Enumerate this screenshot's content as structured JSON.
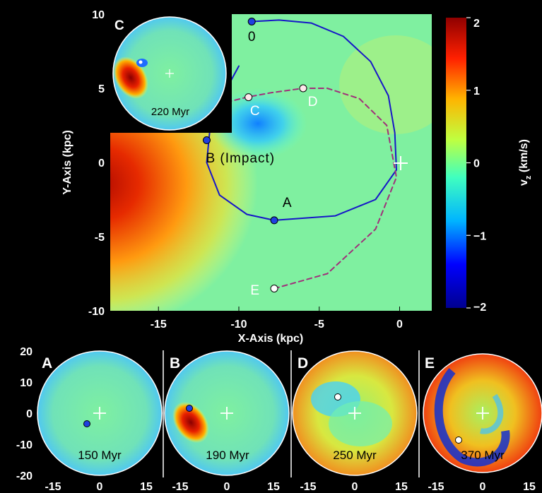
{
  "chart_data": [
    {
      "type": "heatmap",
      "title": "",
      "xlabel": "X-Axis (kpc)",
      "ylabel": "Y-Axis (kpc)",
      "xlim": [
        -18,
        2
      ],
      "ylim": [
        -10,
        10
      ],
      "x_ticks": [
        "-15",
        "-10",
        "-5",
        "0"
      ],
      "x_tick_values": [
        -15,
        -10,
        -5,
        0
      ],
      "y_ticks": [
        "10",
        "5",
        "0",
        "-5",
        "-10"
      ],
      "y_tick_values": [
        10,
        5,
        0,
        -5,
        -10
      ],
      "colorbar": {
        "label": "v",
        "label_sub": "z",
        "label_unit": " (km/s)",
        "range": [
          -2,
          2
        ],
        "ticks": [
          "2",
          "1",
          "0",
          "−1",
          "−2"
        ],
        "tick_values": [
          2,
          1,
          0,
          -1,
          -2
        ],
        "colors": [
          "#00008f",
          "#0000ff",
          "#00b4ff",
          "#40ffbf",
          "#bfff40",
          "#ffb400",
          "#ff2000",
          "#8f0000"
        ]
      },
      "galactic_center": [
        0,
        0
      ],
      "series": [
        {
          "name": "",
          "style": "solid",
          "color": "#1616c8",
          "x": [
            -7.8,
            -4.0,
            -1.5,
            -0.2,
            -0.3,
            -0.7,
            -1.8,
            -3.5,
            -5.5,
            -7.5,
            -9.2
          ],
          "y": [
            -3.9,
            -3.6,
            -2.5,
            -0.5,
            2.0,
            4.5,
            6.8,
            8.5,
            9.4,
            9.6,
            9.5
          ]
        },
        {
          "name": "",
          "style": "dashed",
          "color": "#a0307a",
          "x": [
            -7.8,
            -4.5,
            -1.5,
            -0.2,
            -0.8,
            -2.5,
            -4.5,
            -6.0,
            -8.0,
            -9.5,
            -11.0
          ],
          "y": [
            -8.5,
            -7.5,
            -4.5,
            -1.0,
            2.5,
            4.3,
            5.0,
            5.0,
            4.7,
            4.4,
            4.0
          ]
        },
        {
          "name": "",
          "style": "solid",
          "color": "#1616c8",
          "x": [
            -7.8,
            -9.5,
            -11.2,
            -12.0,
            -11.8,
            -11.2,
            -10.5,
            -10.0
          ],
          "y": [
            -3.9,
            -3.5,
            -2.2,
            0.0,
            2.2,
            4.0,
            5.5,
            6.5
          ]
        }
      ],
      "markers": [
        {
          "label": "0",
          "x": -9.2,
          "y": 9.5,
          "fill": "#1f3fe0",
          "text_color": "#000000",
          "label_dx": 0.0,
          "label_dy": -1.3
        },
        {
          "label": "A",
          "x": -7.8,
          "y": -3.9,
          "fill": "#1f3fe0",
          "text_color": "#000000",
          "label_dx": 0.8,
          "label_dy": 0.9
        },
        {
          "label": "B (Impact)",
          "x": -12.0,
          "y": 1.5,
          "fill": "#1f3fe0",
          "text_color": "#000000",
          "label_dx": 2.1,
          "label_dy": -1.5
        },
        {
          "label": "C",
          "x": -9.4,
          "y": 4.4,
          "fill": "#ffe8ec",
          "text_color": "#ffffff",
          "label_dx": 0.4,
          "label_dy": -1.2
        },
        {
          "label": "D",
          "x": -6.0,
          "y": 5.0,
          "fill": "#ffe8ec",
          "text_color": "#ffffff",
          "label_dx": 0.6,
          "label_dy": -1.2
        },
        {
          "label": "E",
          "x": -7.8,
          "y": -8.5,
          "fill": "#ffffff",
          "text_color": "#ffffff",
          "label_dx": -1.2,
          "label_dy": -0.4
        }
      ]
    },
    {
      "type": "heatmap",
      "panel": "C",
      "title": "220 Myr",
      "marker": {
        "x": -7,
        "y": 3.8
      }
    },
    {
      "type": "heatmap",
      "panel": "A",
      "title": "150 Myr",
      "xlim": [
        -20,
        20
      ],
      "ylim": [
        -20,
        20
      ],
      "x_ticks": [
        "-15",
        "0",
        "15"
      ],
      "x_tick_values": [
        -15,
        0,
        15
      ],
      "y_ticks": [
        "20",
        "10",
        "0",
        "-10",
        "-20"
      ],
      "y_tick_values": [
        20,
        10,
        0,
        -10,
        -20
      ],
      "marker": {
        "x": -4,
        "y": -3.5,
        "fill": "#1f3fe0"
      }
    },
    {
      "type": "heatmap",
      "panel": "B",
      "title": "190 Myr",
      "x_ticks": [
        "-15",
        "0",
        "15"
      ],
      "marker": {
        "x": -12,
        "y": 1.5,
        "fill": "#1f3fe0"
      }
    },
    {
      "type": "heatmap",
      "panel": "D",
      "title": "250 Myr",
      "x_ticks": [
        "-15",
        "0",
        "15"
      ],
      "marker": {
        "x": -6,
        "y": 5,
        "fill": "#ffffff"
      }
    },
    {
      "type": "heatmap",
      "panel": "E",
      "title": "370 Myr",
      "x_ticks": [
        "-15",
        "0",
        "15"
      ],
      "marker": {
        "x": -7.5,
        "y": -8.5,
        "fill": "#ffffff"
      }
    }
  ]
}
